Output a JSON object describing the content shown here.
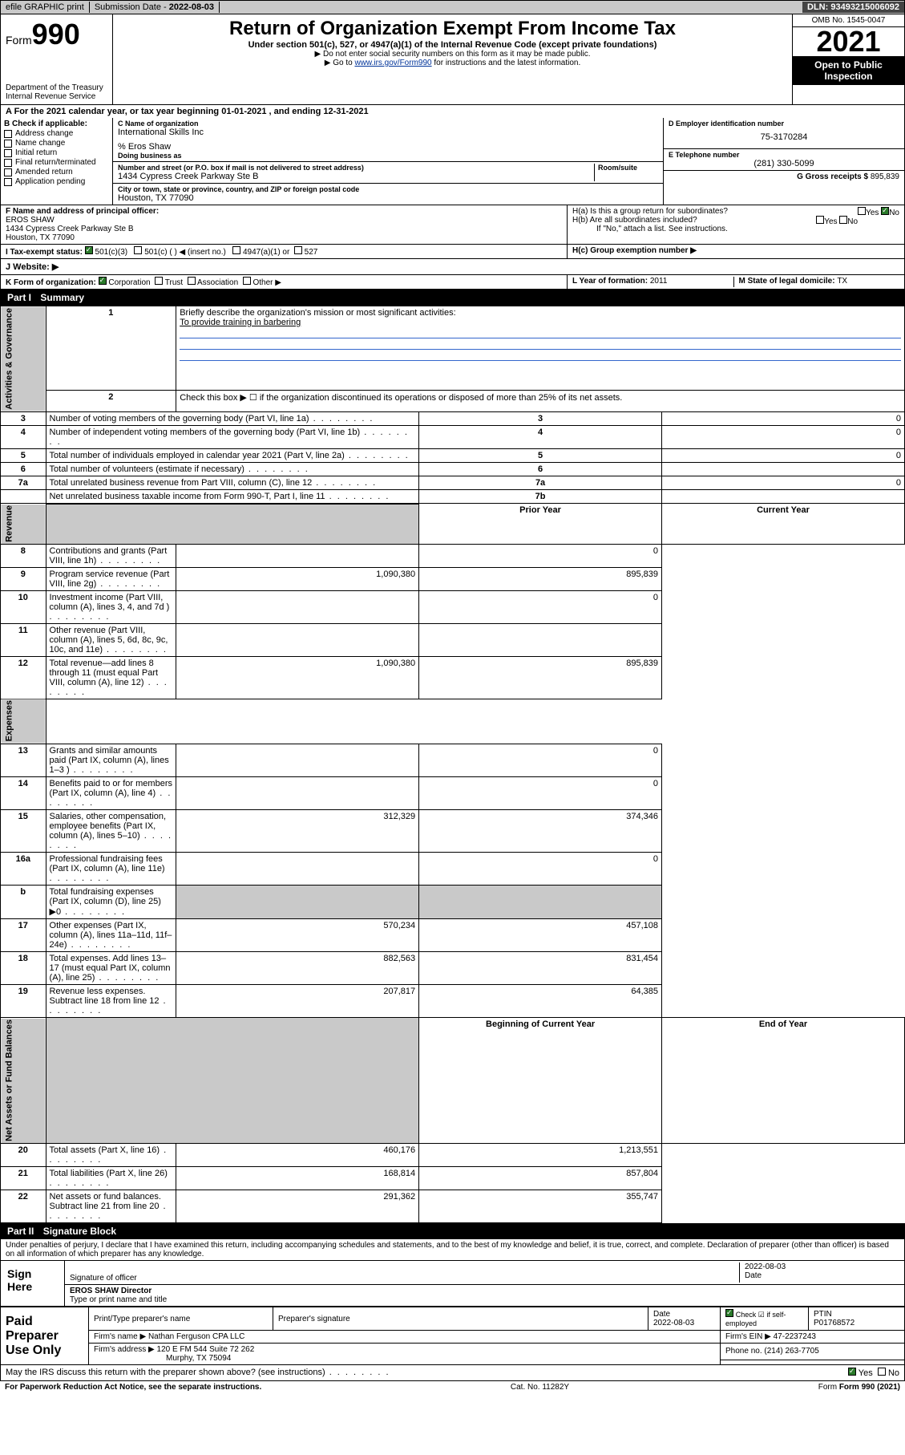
{
  "topbar": {
    "efile": "efile GRAPHIC print",
    "subdate_lab": "Submission Date - ",
    "subdate": "2022-08-03",
    "dln_lab": "DLN: ",
    "dln": "93493215006092"
  },
  "header": {
    "form_word": "Form",
    "form_num": "990",
    "dept": "Department of the Treasury",
    "irs": "Internal Revenue Service",
    "title": "Return of Organization Exempt From Income Tax",
    "sub1": "Under section 501(c), 527, or 4947(a)(1) of the Internal Revenue Code (except private foundations)",
    "sub2": "▶ Do not enter social security numbers on this form as it may be made public.",
    "sub3_pre": "▶ Go to ",
    "sub3_link": "www.irs.gov/Form990",
    "sub3_post": " for instructions and the latest information.",
    "omb": "OMB No. 1545-0047",
    "year": "2021",
    "openpub": "Open to Public Inspection"
  },
  "period": {
    "a_pre": "A For the 2021 calendar year, or tax year beginning ",
    "begin": "01-01-2021",
    "mid": " , and ending ",
    "end": "12-31-2021"
  },
  "colB": {
    "hdr": "B Check if applicable:",
    "items": [
      "Address change",
      "Name change",
      "Initial return",
      "Final return/terminated",
      "Amended return",
      "Application pending"
    ]
  },
  "colC": {
    "name_lab": "C Name of organization",
    "name": "International Skills Inc",
    "co": "% Eros Shaw",
    "dba_lab": "Doing business as",
    "addr_lab": "Number and street (or P.O. box if mail is not delivered to street address)",
    "room_lab": "Room/suite",
    "addr": "1434 Cypress Creek Parkway Ste B",
    "city_lab": "City or town, state or province, country, and ZIP or foreign postal code",
    "city": "Houston, TX  77090"
  },
  "colD": {
    "ein_lab": "D Employer identification number",
    "ein": "75-3170284",
    "tel_lab": "E Telephone number",
    "tel": "(281) 330-5099",
    "gross_lab": "G Gross receipts $ ",
    "gross": "895,839"
  },
  "rowF": {
    "lab": "F  Name and address of principal officer:",
    "name": "EROS SHAW",
    "addr1": "1434 Cypress Creek Parkway Ste B",
    "addr2": "Houston, TX  77090"
  },
  "rowH": {
    "ha": "H(a)  Is this a group return for subordinates?",
    "hb": "H(b)  Are all subordinates included?",
    "hb_note": "If \"No,\" attach a list. See instructions.",
    "hc": "H(c)  Group exemption number ▶",
    "yes": "Yes",
    "no": "No"
  },
  "rowI": {
    "lab": "I     Tax-exempt status:",
    "o1": "501(c)(3)",
    "o2": "501(c) (  ) ◀ (insert no.)",
    "o3": "4947(a)(1) or",
    "o4": "527"
  },
  "rowJ": {
    "lab": "J     Website: ▶"
  },
  "rowK": {
    "lab": "K Form of organization:",
    "o1": "Corporation",
    "o2": "Trust",
    "o3": "Association",
    "o4": "Other ▶"
  },
  "rowL": {
    "lab": "L Year of formation: ",
    "val": "2011"
  },
  "rowM": {
    "lab": "M State of legal domicile: ",
    "val": "TX"
  },
  "part1": {
    "hdr_pn": "Part I",
    "hdr_t": "Summary",
    "tab_gov": "Activities & Governance",
    "tab_rev": "Revenue",
    "tab_exp": "Expenses",
    "tab_net": "Net Assets or Fund Balances",
    "l1_lab": "Briefly describe the organization's mission or most significant activities:",
    "l1_val": "To provide training in barbering",
    "l2": "Check this box ▶ ☐  if the organization discontinued its operations or disposed of more than 25% of its net assets.",
    "prior_hdr": "Prior Year",
    "curr_hdr": "Current Year",
    "begin_hdr": "Beginning of Current Year",
    "end_hdr": "End of Year",
    "rows_gov": [
      {
        "n": "3",
        "t": "Number of voting members of the governing body (Part VI, line 1a)",
        "rn": "3",
        "v": "0"
      },
      {
        "n": "4",
        "t": "Number of independent voting members of the governing body (Part VI, line 1b)",
        "rn": "4",
        "v": "0"
      },
      {
        "n": "5",
        "t": "Total number of individuals employed in calendar year 2021 (Part V, line 2a)",
        "rn": "5",
        "v": "0"
      },
      {
        "n": "6",
        "t": "Total number of volunteers (estimate if necessary)",
        "rn": "6",
        "v": ""
      },
      {
        "n": "7a",
        "t": "Total unrelated business revenue from Part VIII, column (C), line 12",
        "rn": "7a",
        "v": "0"
      },
      {
        "n": "",
        "t": "Net unrelated business taxable income from Form 990-T, Part I, line 11",
        "rn": "7b",
        "v": ""
      }
    ],
    "rows_rev": [
      {
        "n": "8",
        "t": "Contributions and grants (Part VIII, line 1h)",
        "p": "",
        "c": "0"
      },
      {
        "n": "9",
        "t": "Program service revenue (Part VIII, line 2g)",
        "p": "1,090,380",
        "c": "895,839"
      },
      {
        "n": "10",
        "t": "Investment income (Part VIII, column (A), lines 3, 4, and 7d )",
        "p": "",
        "c": "0"
      },
      {
        "n": "11",
        "t": "Other revenue (Part VIII, column (A), lines 5, 6d, 8c, 9c, 10c, and 11e)",
        "p": "",
        "c": ""
      },
      {
        "n": "12",
        "t": "Total revenue—add lines 8 through 11 (must equal Part VIII, column (A), line 12)",
        "p": "1,090,380",
        "c": "895,839"
      }
    ],
    "rows_exp": [
      {
        "n": "13",
        "t": "Grants and similar amounts paid (Part IX, column (A), lines 1–3 )",
        "p": "",
        "c": "0"
      },
      {
        "n": "14",
        "t": "Benefits paid to or for members (Part IX, column (A), line 4)",
        "p": "",
        "c": "0"
      },
      {
        "n": "15",
        "t": "Salaries, other compensation, employee benefits (Part IX, column (A), lines 5–10)",
        "p": "312,329",
        "c": "374,346"
      },
      {
        "n": "16a",
        "t": "Professional fundraising fees (Part IX, column (A), line 11e)",
        "p": "",
        "c": "0"
      },
      {
        "n": "b",
        "t": "Total fundraising expenses (Part IX, column (D), line 25) ▶0",
        "p": "shade",
        "c": "shade"
      },
      {
        "n": "17",
        "t": "Other expenses (Part IX, column (A), lines 11a–11d, 11f–24e)",
        "p": "570,234",
        "c": "457,108"
      },
      {
        "n": "18",
        "t": "Total expenses. Add lines 13–17 (must equal Part IX, column (A), line 25)",
        "p": "882,563",
        "c": "831,454"
      },
      {
        "n": "19",
        "t": "Revenue less expenses. Subtract line 18 from line 12",
        "p": "207,817",
        "c": "64,385"
      }
    ],
    "rows_net": [
      {
        "n": "20",
        "t": "Total assets (Part X, line 16)",
        "p": "460,176",
        "c": "1,213,551"
      },
      {
        "n": "21",
        "t": "Total liabilities (Part X, line 26)",
        "p": "168,814",
        "c": "857,804"
      },
      {
        "n": "22",
        "t": "Net assets or fund balances. Subtract line 21 from line 20",
        "p": "291,362",
        "c": "355,747"
      }
    ]
  },
  "part2": {
    "hdr_pn": "Part II",
    "hdr_t": "Signature Block",
    "decl": "Under penalties of perjury, I declare that I have examined this return, including accompanying schedules and statements, and to the best of my knowledge and belief, it is true, correct, and complete. Declaration of preparer (other than officer) is based on all information of which preparer has any knowledge.",
    "sign_here": "Sign Here",
    "sig_officer": "Signature of officer",
    "sig_date": "Date",
    "sig_date_val": "2022-08-03",
    "sig_name": "EROS SHAW  Director",
    "sig_name_lab": "Type or print name and title",
    "paid_prep": "Paid Preparer Use Only",
    "pt_name_lab": "Print/Type preparer's name",
    "pt_sig_lab": "Preparer's signature",
    "pt_date_lab": "Date",
    "pt_date": "2022-08-03",
    "pt_chk": "Check ☑ if self-employed",
    "ptin_lab": "PTIN",
    "ptin": "P01768572",
    "firm_name_lab": "Firm's name    ▶ ",
    "firm_name": "Nathan Ferguson CPA LLC",
    "firm_ein_lab": "Firm's EIN ▶ ",
    "firm_ein": "47-2237243",
    "firm_addr_lab": "Firm's address ▶ ",
    "firm_addr1": "120 E FM 544 Suite 72 262",
    "firm_addr2": "Murphy, TX  75094",
    "firm_phone_lab": "Phone no. ",
    "firm_phone": "(214) 263-7705",
    "may_irs": "May the IRS discuss this return with the preparer shown above? (see instructions)"
  },
  "footer": {
    "pra": "For Paperwork Reduction Act Notice, see the separate instructions.",
    "cat": "Cat. No. 11282Y",
    "form": "Form 990 (2021)"
  }
}
